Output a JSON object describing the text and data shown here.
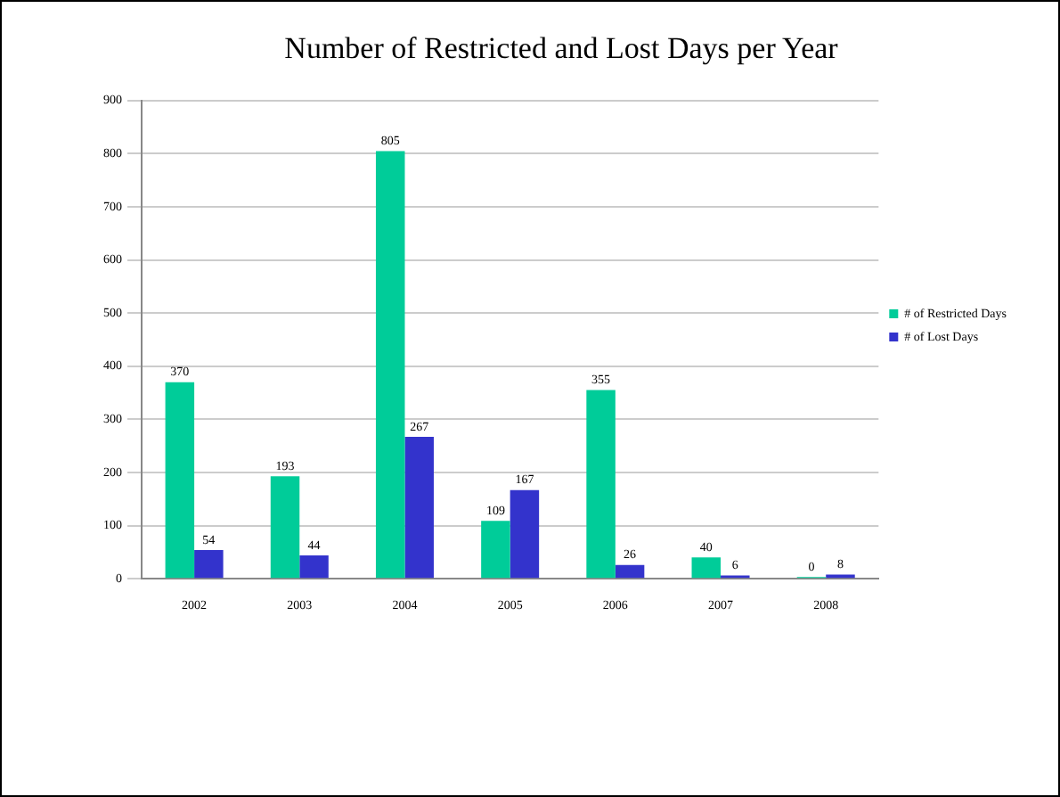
{
  "chart_data": {
    "type": "bar",
    "title": "Number of Restricted and Lost Days per Year",
    "categories": [
      "2002",
      "2003",
      "2004",
      "2005",
      "2006",
      "2007",
      "2008"
    ],
    "series": [
      {
        "name": "# of Restricted Days",
        "color": "#00cc99",
        "values": [
          370,
          193,
          805,
          109,
          355,
          40,
          0
        ]
      },
      {
        "name": "# of Lost Days",
        "color": "#3333cc",
        "values": [
          54,
          44,
          267,
          167,
          26,
          6,
          8
        ]
      }
    ],
    "ylim": [
      0,
      900
    ],
    "yticks": [
      0,
      100,
      200,
      300,
      400,
      500,
      600,
      700,
      800,
      900
    ],
    "grid": "y",
    "legend": "right",
    "data_labels": true
  }
}
